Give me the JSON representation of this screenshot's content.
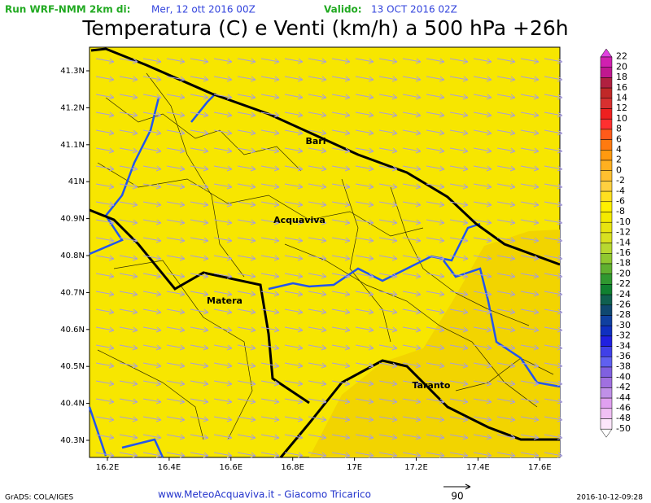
{
  "header": {
    "run_label": "Run WRF-NMM 2km di:",
    "run_date": "Mer, 12 ott 2016 00Z",
    "valid_label": "Valido:",
    "valid_date": "13 OCT 2016 02Z",
    "title": "Temperatura (C) e Venti (km/h) a 500 hPa +26h"
  },
  "map": {
    "lat_labels": [
      "41.3N",
      "41.2N",
      "41.1N",
      "41N",
      "40.9N",
      "40.8N",
      "40.7N",
      "40.6N",
      "40.5N",
      "40.4N",
      "40.3N"
    ],
    "lon_labels": [
      "16.2E",
      "16.4E",
      "16.6E",
      "16.8E",
      "17E",
      "17.2E",
      "17.4E",
      "17.6E"
    ],
    "places": [
      "Bari",
      "Acquaviva",
      "Matera",
      "Taranto"
    ]
  },
  "colorbar": {
    "labels": [
      "22",
      "20",
      "18",
      "16",
      "14",
      "12",
      "10",
      "8",
      "6",
      "4",
      "2",
      "0",
      "-2",
      "-4",
      "-6",
      "-8",
      "-10",
      "-12",
      "-14",
      "-16",
      "-18",
      "-20",
      "-22",
      "-24",
      "-26",
      "-28",
      "-30",
      "-32",
      "-34",
      "-36",
      "-38",
      "-40",
      "-42",
      "-44",
      "-46",
      "-48",
      "-50"
    ]
  },
  "footer": {
    "software": "GrADS: COLA/IGES",
    "credit": "www.MeteoAcquaviva.it - Giacomo Tricarico",
    "vector_scale": "90",
    "timestamp": "2016-10-12-09:28"
  }
}
